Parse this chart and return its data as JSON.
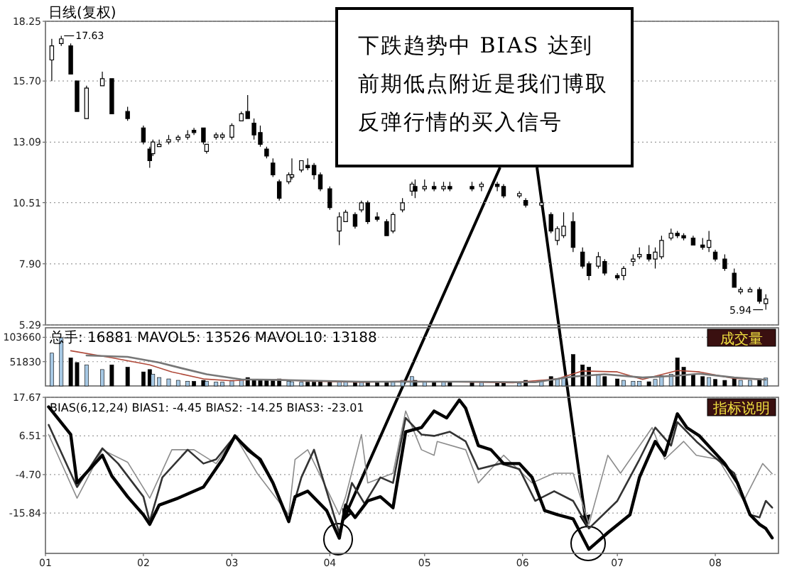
{
  "chart_data": [
    {
      "type": "candlestick",
      "title": "日线(复权)",
      "color": "#000000",
      "xlim": [
        "--01-01",
        "--08-21"
      ],
      "ylim": [
        5.29,
        18.25
      ],
      "yticks": [
        18.25,
        {
          "value": 15.7,
          "label": "15.70"
        },
        13.09,
        10.51,
        {
          "value": 7.9,
          "label": "7.90"
        },
        5.29
      ],
      "grid": "y",
      "tick_labels": "y",
      "x": [
        "--01-03",
        "--01-06",
        "--01-09",
        "--01-11",
        "--01-14",
        "--01-19",
        "--01-22",
        "--01-27",
        "--02-01",
        "--02-03",
        "--02-04",
        "--02-06",
        "--02-09",
        "--02-12",
        "--02-15",
        "--02-17",
        "--02-20",
        "--02-21",
        "--02-24",
        "--02-26",
        "--03-01",
        "--03-04",
        "--03-06",
        "--03-08",
        "--03-10",
        "--03-12",
        "--03-14",
        "--03-16",
        "--03-19",
        "--03-20",
        "--03-23",
        "--03-25",
        "--03-27",
        "--03-29",
        "--04-01",
        "--04-04",
        "--04-06",
        "--04-09",
        "--04-11",
        "--04-13",
        "--04-16",
        "--04-19",
        "--04-21",
        "--04-24",
        "--04-27",
        "--04-28",
        "--05-01",
        "--05-04",
        "--05-07",
        "--05-09",
        "--05-16",
        "--05-19",
        "--05-24",
        "--05-26",
        "--05-31",
        "--06-02",
        "--06-07",
        "--06-10",
        "--06-12",
        "--06-14",
        "--06-17",
        "--06-20",
        "--06-22",
        "--06-25",
        "--06-27",
        "--07-01",
        "--07-03",
        "--07-06",
        "--07-08",
        "--07-11",
        "--07-13",
        "--07-15",
        "--07-18",
        "--07-20",
        "--07-22",
        "--07-25",
        "--07-28",
        "--07-30",
        "--08-01",
        "--08-04",
        "--08-07",
        "--08-09",
        "--08-12",
        "--08-15",
        "--08-17"
      ],
      "ohlc": [
        [
          16.6,
          17.5,
          15.7,
          17.2
        ],
        [
          17.3,
          17.63,
          17.2,
          17.5
        ],
        [
          17.2,
          17.3,
          16.0,
          16.0
        ],
        [
          15.7,
          15.7,
          14.4,
          14.4
        ],
        [
          14.1,
          15.5,
          14.1,
          15.4
        ],
        [
          15.5,
          16.1,
          15.5,
          15.8
        ],
        [
          15.8,
          15.8,
          14.3,
          14.3
        ],
        [
          14.4,
          14.6,
          14.0,
          14.1
        ],
        [
          13.7,
          13.8,
          13.0,
          13.1
        ],
        [
          12.8,
          12.9,
          12.0,
          12.3
        ],
        [
          12.6,
          13.2,
          12.5,
          13.1
        ],
        [
          12.9,
          13.2,
          12.9,
          13.0
        ],
        [
          13.1,
          13.4,
          13.0,
          13.2
        ],
        [
          13.2,
          13.4,
          13.1,
          13.3
        ],
        [
          13.3,
          13.6,
          13.2,
          13.4
        ],
        [
          13.6,
          13.7,
          13.4,
          13.5
        ],
        [
          13.7,
          13.7,
          13.0,
          13.1
        ],
        [
          12.7,
          13.0,
          12.6,
          13.0
        ],
        [
          13.3,
          13.5,
          13.2,
          13.4
        ],
        [
          13.3,
          13.5,
          13.2,
          13.4
        ],
        [
          13.3,
          13.9,
          13.2,
          13.8
        ],
        [
          14.0,
          14.4,
          14.0,
          14.3
        ],
        [
          14.4,
          15.1,
          14.1,
          14.1
        ],
        [
          13.9,
          14.1,
          13.2,
          13.4
        ],
        [
          13.5,
          13.8,
          12.9,
          13.0
        ],
        [
          12.8,
          12.9,
          12.4,
          12.5
        ],
        [
          12.2,
          12.4,
          11.6,
          11.7
        ],
        [
          11.4,
          11.5,
          10.6,
          10.7
        ],
        [
          11.4,
          11.8,
          11.3,
          11.7
        ],
        [
          11.6,
          12.4,
          11.5,
          11.7
        ],
        [
          11.9,
          12.3,
          11.8,
          12.3
        ],
        [
          12.1,
          12.4,
          11.9,
          12.0
        ],
        [
          12.1,
          12.2,
          11.5,
          11.7
        ],
        [
          11.7,
          11.8,
          11.0,
          11.1
        ],
        [
          11.1,
          11.2,
          10.2,
          10.3
        ],
        [
          9.3,
          10.1,
          8.7,
          9.9
        ],
        [
          9.7,
          10.2,
          9.7,
          10.1
        ],
        [
          10.0,
          10.1,
          9.4,
          9.5
        ],
        [
          10.2,
          10.6,
          10.1,
          10.5
        ],
        [
          10.5,
          10.6,
          9.6,
          9.7
        ],
        [
          9.9,
          10.1,
          9.7,
          9.8
        ],
        [
          9.7,
          9.8,
          9.1,
          9.1
        ],
        [
          9.3,
          10.1,
          9.2,
          10.0
        ],
        [
          10.2,
          10.7,
          10.1,
          10.5
        ],
        [
          11.0,
          11.4,
          10.8,
          11.3
        ],
        [
          11.2,
          11.5,
          10.7,
          11.0
        ],
        [
          11.1,
          11.5,
          11.0,
          11.2
        ],
        [
          11.2,
          11.4,
          11.0,
          11.1
        ],
        [
          11.1,
          11.4,
          11.0,
          11.2
        ],
        [
          11.2,
          11.4,
          11.0,
          11.1
        ],
        [
          11.2,
          11.4,
          11.0,
          11.1
        ],
        [
          11.2,
          11.4,
          11.0,
          11.3
        ],
        [
          11.3,
          11.4,
          11.0,
          11.2
        ],
        [
          11.2,
          11.3,
          10.7,
          10.8
        ],
        [
          10.8,
          11.0,
          10.7,
          10.9
        ],
        [
          10.6,
          10.7,
          10.3,
          10.4
        ],
        [
          10.4,
          10.6,
          10.3,
          10.5
        ],
        [
          10.0,
          10.1,
          9.2,
          9.3
        ],
        [
          8.9,
          9.5,
          8.7,
          9.4
        ],
        [
          9.1,
          10.1,
          9.0,
          9.5
        ],
        [
          9.7,
          10.1,
          8.4,
          8.6
        ],
        [
          8.4,
          8.6,
          7.7,
          7.8
        ],
        [
          7.9,
          8.0,
          7.2,
          7.4
        ],
        [
          7.8,
          8.4,
          7.7,
          8.2
        ],
        [
          8.0,
          8.1,
          7.4,
          7.5
        ],
        [
          7.4,
          7.5,
          7.2,
          7.3
        ],
        [
          7.4,
          7.8,
          7.2,
          7.7
        ],
        [
          8.0,
          8.3,
          7.8,
          8.1
        ],
        [
          8.2,
          8.6,
          8.1,
          8.3
        ],
        [
          8.3,
          8.7,
          8.0,
          8.1
        ],
        [
          8.1,
          8.6,
          7.7,
          8.4
        ],
        [
          8.2,
          9.1,
          8.1,
          8.9
        ],
        [
          9.0,
          9.4,
          8.9,
          9.2
        ],
        [
          9.2,
          9.3,
          9.0,
          9.1
        ],
        [
          9.1,
          9.2,
          8.9,
          9.0
        ],
        [
          9.0,
          9.1,
          8.7,
          8.7
        ],
        [
          8.7,
          9.0,
          8.5,
          8.6
        ],
        [
          8.6,
          9.3,
          8.4,
          8.9
        ],
        [
          8.4,
          8.5,
          8.0,
          8.1
        ],
        [
          8.1,
          8.3,
          7.6,
          7.7
        ],
        [
          7.5,
          7.7,
          6.9,
          6.9
        ],
        [
          6.7,
          6.9,
          6.6,
          6.8
        ],
        [
          6.7,
          6.9,
          6.7,
          6.8
        ],
        [
          6.8,
          6.9,
          6.2,
          6.3
        ],
        [
          6.2,
          6.6,
          5.94,
          6.4
        ]
      ],
      "annotations": [
        {
          "text": "17.63",
          "x": "--01-06",
          "y": 17.63
        },
        {
          "text": "5.94",
          "x": "--08-17",
          "y": 5.94
        },
        "下跌趋势中 BIAS 达到前期低点附近是我们博取反弹行情的买入信号"
      ]
    },
    {
      "type": "bar",
      "title": "总手: 16881  MAVOL5: 13526  MAVOL10: 13188",
      "xlim": [
        "--01-01",
        "--08-21"
      ],
      "ylim": [
        0,
        124000
      ],
      "yticks": [
        51830,
        103660
      ],
      "grid": "y",
      "tick_labels": "y",
      "x": [
        "--01-03",
        "--01-06",
        "--01-09",
        "--01-11",
        "--01-14",
        "--01-19",
        "--01-22",
        "--01-27",
        "--02-01",
        "--02-03",
        "--02-04",
        "--02-06",
        "--02-09",
        "--02-12",
        "--02-15",
        "--02-17",
        "--02-20",
        "--02-21",
        "--02-24",
        "--02-26",
        "--03-01",
        "--03-04",
        "--03-06",
        "--03-08",
        "--03-10",
        "--03-12",
        "--03-14",
        "--03-16",
        "--03-19",
        "--03-20",
        "--03-23",
        "--03-25",
        "--03-27",
        "--03-29",
        "--04-01",
        "--04-04",
        "--04-06",
        "--04-09",
        "--04-11",
        "--04-13",
        "--04-16",
        "--04-19",
        "--04-21",
        "--04-24",
        "--04-27",
        "--04-28",
        "--05-01",
        "--05-04",
        "--05-07",
        "--05-09",
        "--05-16",
        "--05-19",
        "--05-24",
        "--05-26",
        "--05-31",
        "--06-02",
        "--06-07",
        "--06-10",
        "--06-12",
        "--06-14",
        "--06-17",
        "--06-20",
        "--06-22",
        "--06-25",
        "--06-27",
        "--07-01",
        "--07-03",
        "--07-06",
        "--07-08",
        "--07-11",
        "--07-13",
        "--07-15",
        "--07-18",
        "--07-20",
        "--07-22",
        "--07-25",
        "--07-28",
        "--07-30",
        "--08-01",
        "--08-04",
        "--08-07",
        "--08-09",
        "--08-12",
        "--08-15",
        "--08-17"
      ],
      "series": [
        {
          "values": [
            70000,
            103000,
            60000,
            50000,
            45000,
            35000,
            45000,
            40000,
            30000,
            35000,
            25000,
            18000,
            15000,
            12000,
            10000,
            10000,
            12000,
            10000,
            8000,
            8000,
            12000,
            14000,
            18000,
            14000,
            12000,
            12000,
            12000,
            15000,
            10000,
            9000,
            8000,
            8000,
            8000,
            9000,
            10000,
            10000,
            8000,
            7000,
            8000,
            7000,
            7000,
            7000,
            8000,
            12000,
            20000,
            12000,
            10000,
            9000,
            8000,
            8000,
            7000,
            9000,
            7000,
            6000,
            6000,
            12000,
            10000,
            20000,
            15000,
            18000,
            67000,
            45000,
            40000,
            25000,
            20000,
            15000,
            12000,
            10000,
            10000,
            9000,
            14000,
            22000,
            25000,
            60000,
            40000,
            25000,
            20000,
            18000,
            14000,
            12000,
            16000,
            12000,
            12000,
            15000,
            16881
          ],
          "colors": [
            "#a6c8e4",
            "#a6c8e4",
            "#000000",
            "#000000",
            "#a6c8e4",
            "#a6c8e4",
            "#000000",
            "#000000",
            "#000000",
            "#000000",
            "#a6c8e4",
            "#a6c8e4",
            "#a6c8e4",
            "#a6c8e4",
            "#a6c8e4",
            "#000000",
            "#000000",
            "#a6c8e4",
            "#a6c8e4",
            "#a6c8e4",
            "#a6c8e4",
            "#a6c8e4",
            "#000000",
            "#000000",
            "#000000",
            "#000000",
            "#000000",
            "#000000",
            "#a6c8e4",
            "#a6c8e4",
            "#a6c8e4",
            "#000000",
            "#000000",
            "#000000",
            "#000000",
            "#a6c8e4",
            "#a6c8e4",
            "#000000",
            "#a6c8e4",
            "#000000",
            "#000000",
            "#000000",
            "#a6c8e4",
            "#a6c8e4",
            "#a6c8e4",
            "#000000",
            "#a6c8e4",
            "#000000",
            "#a6c8e4",
            "#000000",
            "#000000",
            "#a6c8e4",
            "#000000",
            "#000000",
            "#a6c8e4",
            "#000000",
            "#a6c8e4",
            "#000000",
            "#a6c8e4",
            "#a6c8e4",
            "#000000",
            "#000000",
            "#000000",
            "#a6c8e4",
            "#000000",
            "#000000",
            "#a6c8e4",
            "#a6c8e4",
            "#a6c8e4",
            "#000000",
            "#a6c8e4",
            "#a6c8e4",
            "#a6c8e4",
            "#000000",
            "#000000",
            "#000000",
            "#000000",
            "#a6c8e4",
            "#000000",
            "#000000",
            "#000000",
            "#a6c8e4",
            "#a6c8e4",
            "#000000",
            "#a6c8e4"
          ]
        },
        {
          "type": "line",
          "color": "#b04a3a",
          "x": [
            "--01-09",
            "--01-22",
            "--02-03",
            "--02-10",
            "--02-20",
            "--03-01",
            "--03-08",
            "--03-16",
            "--03-28",
            "--04-11",
            "--04-24",
            "--05-08",
            "--05-29",
            "--06-12",
            "--06-20",
            "--07-01",
            "--07-09",
            "--07-20",
            "--07-27",
            "--08-07",
            "--08-17"
          ],
          "values": [
            75000,
            60000,
            45000,
            30000,
            15000,
            11000,
            14000,
            13000,
            10000,
            8000,
            10000,
            9000,
            7000,
            15000,
            32000,
            30000,
            14000,
            33000,
            30000,
            16000,
            13526
          ]
        },
        {
          "type": "line",
          "color": "#777777",
          "x": [
            "--01-14",
            "--01-27",
            "--02-06",
            "--02-13",
            "--02-21",
            "--03-04",
            "--03-14",
            "--03-28",
            "--04-11",
            "--04-24",
            "--05-15",
            "--06-05",
            "--06-17",
            "--06-27",
            "--07-09",
            "--07-20",
            "--07-27",
            "--08-07",
            "--08-17"
          ],
          "values": [
            65000,
            62000,
            50000,
            38000,
            25000,
            14000,
            13000,
            11000,
            9000,
            9000,
            9000,
            8000,
            20000,
            25000,
            18000,
            22000,
            26000,
            18000,
            13188
          ]
        }
      ],
      "annotations": [
        "成交量"
      ]
    },
    {
      "type": "line",
      "title": "BIAS(6,12,24)  BIAS1: -4.45  BIAS2: -14.25  BIAS3: -23.01",
      "xlim": [
        "--01-01",
        "--08-21"
      ],
      "ylim": [
        -27.5,
        17.67
      ],
      "yticks": [
        17.67,
        6.51,
        {
          "value": -4.7,
          "label": "-4.70"
        },
        -15.84
      ],
      "grid": "y",
      "xticks": [
        {
          "value": "--01-01",
          "label": "01"
        },
        {
          "value": "--02-01",
          "label": "02"
        },
        {
          "value": "--03-01",
          "label": "03"
        },
        {
          "value": "--04-01",
          "label": "04"
        },
        {
          "value": "--05-01",
          "label": "05"
        },
        {
          "value": "--06-01",
          "label": "06"
        },
        {
          "value": "--07-01",
          "label": "07"
        },
        {
          "value": "--08-01",
          "label": "08"
        }
      ],
      "series": [
        {
          "color": "#8c8c8c",
          "x": [
            "--01-02",
            "--01-11",
            "--01-19",
            "--01-27",
            "--02-03",
            "--02-10",
            "--02-17",
            "--02-24",
            "--03-02",
            "--03-09",
            "--03-19",
            "--03-21",
            "--03-25",
            "--04-04",
            "--04-06",
            "--04-11",
            "--04-13",
            "--04-21",
            "--04-25",
            "--04-30",
            "--05-04",
            "--05-05",
            "--05-14",
            "--05-18",
            "--05-26",
            "--06-04",
            "--06-11",
            "--06-17",
            "--06-22",
            "--06-28",
            "--07-02",
            "--07-12",
            "--07-16",
            "--07-22",
            "--07-26",
            "--08-02",
            "--08-10",
            "--08-16",
            "--08-19"
          ],
          "values": [
            6.9,
            -11.5,
            2.5,
            -1.1,
            -11.5,
            2.5,
            2.5,
            -1.5,
            6.5,
            -4.3,
            -16.3,
            -0.3,
            2.5,
            -16.3,
            -11.1,
            6.9,
            -7.1,
            -4.3,
            13.7,
            2.5,
            0.9,
            4.9,
            2.5,
            -7.1,
            0.9,
            -7.1,
            -4.3,
            -4.3,
            -19.1,
            0.9,
            -4.3,
            8.9,
            -0.3,
            4.9,
            0.9,
            -0.3,
            -12.3,
            -1.5,
            -4.45
          ]
        },
        {
          "color": "#333333",
          "x": [
            "--01-02",
            "--01-11",
            "--01-19",
            "--01-24",
            "--02-01",
            "--02-03",
            "--02-07",
            "--02-15",
            "--02-20",
            "--02-24",
            "--03-02",
            "--03-09",
            "--03-14",
            "--03-19",
            "--03-23",
            "--03-27",
            "--03-31",
            "--04-04",
            "--04-08",
            "--04-12",
            "--04-17",
            "--04-21",
            "--04-25",
            "--04-30",
            "--05-04",
            "--05-09",
            "--05-14",
            "--05-18",
            "--05-25",
            "--05-31",
            "--06-05",
            "--06-11",
            "--06-17",
            "--06-22",
            "--07-01",
            "--07-08",
            "--07-13",
            "--07-18",
            "--07-20",
            "--07-26",
            "--07-31",
            "--08-07",
            "--08-12",
            "--08-15",
            "--08-17",
            "--08-19"
          ],
          "values": [
            9.7,
            -8.3,
            2.9,
            -1.5,
            -11.1,
            -18.3,
            -5.5,
            2.5,
            -1.5,
            -0.3,
            6.5,
            0.5,
            -7.1,
            -18.3,
            -5.5,
            2.5,
            -9.5,
            -21.5,
            -7.1,
            -13.1,
            -5.5,
            -7.1,
            11.7,
            6.9,
            6.5,
            7.7,
            4.9,
            -3.1,
            -1.5,
            -3.1,
            -12.3,
            -9.5,
            -12.3,
            -20.3,
            -12.3,
            -0.3,
            8.9,
            3.7,
            10.5,
            4.9,
            0.9,
            -4.3,
            -16.3,
            -17.1,
            -12.3,
            -14.25
          ]
        },
        {
          "color": "#000000",
          "x": [
            "--01-02",
            "--01-09",
            "--01-11",
            "--01-19",
            "--01-22",
            "--01-27",
            "--02-01",
            "--02-03",
            "--02-06",
            "--02-12",
            "--02-20",
            "--02-26",
            "--03-02",
            "--03-06",
            "--03-10",
            "--03-14",
            "--03-19",
            "--03-21",
            "--03-25",
            "--03-31",
            "--04-04",
            "--04-06",
            "--04-09",
            "--04-13",
            "--04-17",
            "--04-21",
            "--04-25",
            "--04-30",
            "--05-04",
            "--05-08",
            "--05-12",
            "--05-14",
            "--05-18",
            "--05-22",
            "--05-26",
            "--05-31",
            "--06-04",
            "--06-08",
            "--06-12",
            "--06-17",
            "--06-22",
            "--06-28",
            "--07-05",
            "--07-08",
            "--07-13",
            "--07-16",
            "--07-20",
            "--07-23",
            "--07-27",
            "--07-31",
            "--08-04",
            "--08-08",
            "--08-12",
            "--08-15",
            "--08-17",
            "--08-19"
          ],
          "values": [
            14.9,
            6.9,
            -7.1,
            0.9,
            -5.1,
            -11.1,
            -16.3,
            -19.1,
            -13.5,
            -11.5,
            -8.3,
            -0.3,
            6.5,
            2.5,
            -0.3,
            -7.1,
            -18.3,
            -11.1,
            -9.5,
            -15.1,
            -23.1,
            -13.5,
            -17.1,
            -12.3,
            -11.1,
            -14.3,
            7.7,
            8.9,
            13.7,
            11.7,
            16.9,
            14.5,
            3.7,
            2.5,
            -1.5,
            -1.5,
            -5.5,
            -15.1,
            -16.3,
            -17.5,
            -26.3,
            -21.5,
            -16.3,
            -5.5,
            4.9,
            0.9,
            12.9,
            8.9,
            6.5,
            2.5,
            -1.5,
            -7.1,
            -16.3,
            -19.1,
            -20.3,
            -23.01
          ]
        }
      ],
      "annotations": [
        "指标说明"
      ]
    }
  ]
}
